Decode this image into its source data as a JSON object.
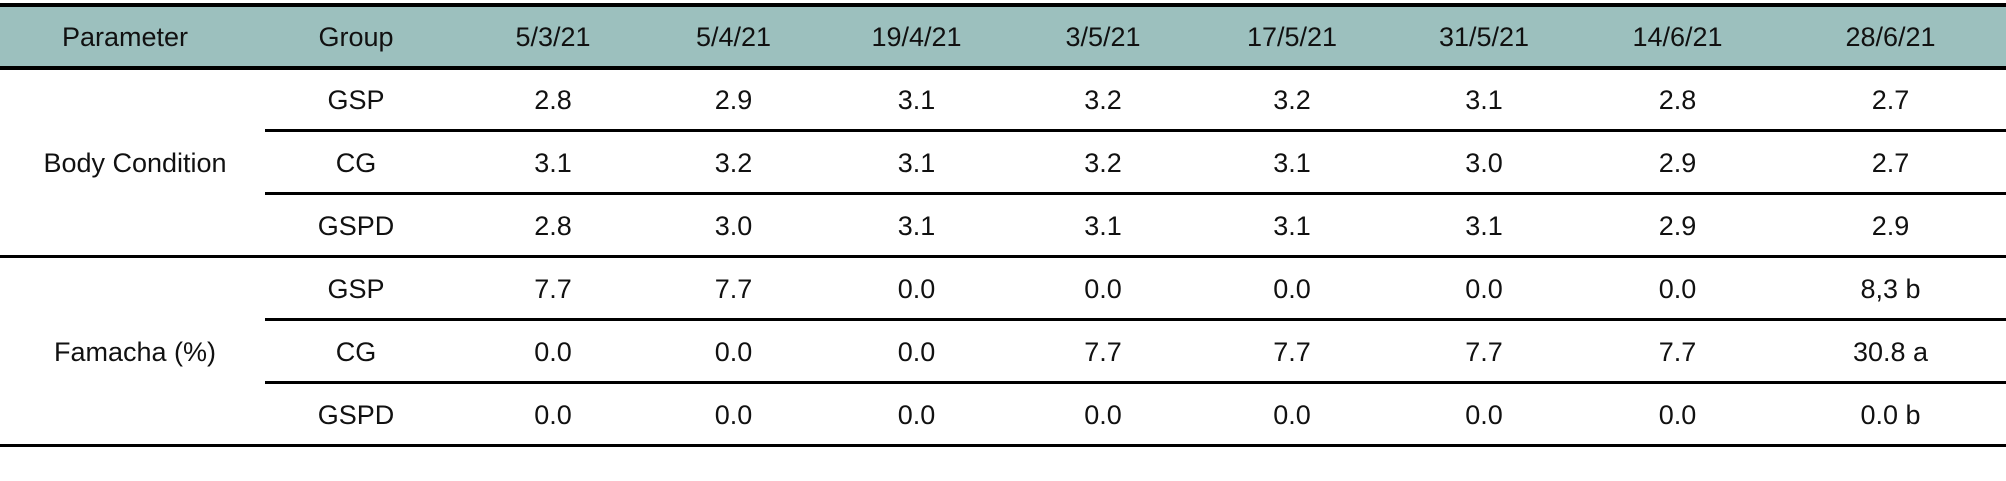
{
  "header": [
    "Parameter",
    "Group",
    "5/3/21",
    "5/4/21",
    "19/4/21",
    "3/5/21",
    "17/5/21",
    "31/5/21",
    "14/6/21",
    "28/6/21"
  ],
  "groups": [
    {
      "parameter": "Body Condition",
      "rows": [
        [
          "GSP",
          "2.8",
          "2.9",
          "3.1",
          "3.2",
          "3.2",
          "3.1",
          "2.8",
          "2.7"
        ],
        [
          "CG",
          "3.1",
          "3.2",
          "3.1",
          "3.2",
          "3.1",
          "3.0",
          "2.9",
          "2.7"
        ],
        [
          "GSPD",
          "2.8",
          "3.0",
          "3.1",
          "3.1",
          "3.1",
          "3.1",
          "2.9",
          "2.9"
        ]
      ]
    },
    {
      "parameter": "Famacha (%)",
      "rows": [
        [
          "GSP",
          "7.7",
          "7.7",
          "0.0",
          "0.0",
          "0.0",
          "0.0",
          "0.0",
          "8,3 b"
        ],
        [
          "CG",
          "0.0",
          "0.0",
          "0.0",
          "7.7",
          "7.7",
          "7.7",
          "7.7",
          "30.8 a"
        ],
        [
          "GSPD",
          "0.0",
          "0.0",
          "0.0",
          "0.0",
          "0.0",
          "0.0",
          "0.0",
          "0.0 b"
        ]
      ]
    }
  ]
}
